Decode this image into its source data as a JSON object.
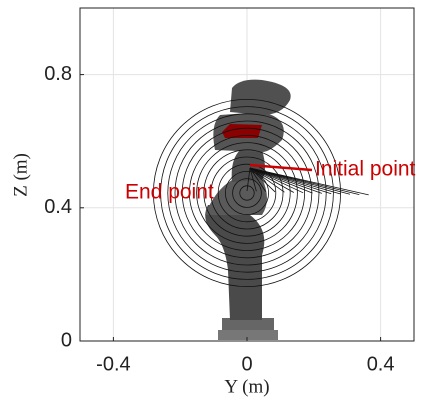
{
  "chart_data": {
    "type": "trajectory",
    "xlabel": "Y (m)",
    "ylabel": "Z (m)",
    "xlim": [
      -0.5,
      0.5
    ],
    "xticks": [
      -0.4,
      0,
      0.4
    ],
    "ylim": [
      0,
      1
    ],
    "yticks": [
      0,
      0.4,
      0.8
    ],
    "grid": true,
    "annotations": [
      {
        "text": "Initial point",
        "color": "#cc0000"
      },
      {
        "text": "End point",
        "color": "#cc0000"
      }
    ]
  }
}
